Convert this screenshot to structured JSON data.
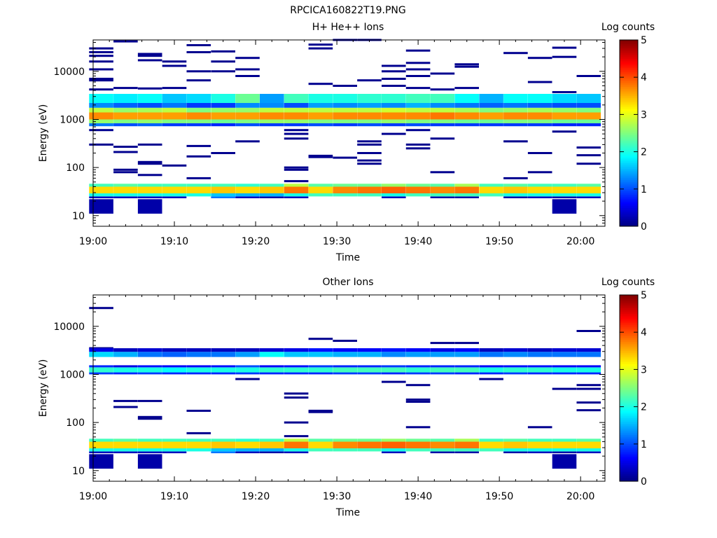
{
  "figure_title": "RPCICA160822T19.PNG",
  "chart_data": [
    {
      "type": "heatmap",
      "title": "H+ He++ Ions",
      "xlabel": "Time",
      "ylabel": "Energy (eV)",
      "yscale": "log",
      "ylim": [
        6,
        45000
      ],
      "xlim": [
        "19:00",
        "20:03"
      ],
      "x_ticks": [
        "19:00",
        "19:10",
        "19:20",
        "19:30",
        "19:40",
        "19:50",
        "20:00"
      ],
      "y_ticks": [
        "10",
        "100",
        "1000",
        "10000"
      ],
      "colorbar": {
        "label": "Log counts",
        "range": [
          0,
          5
        ],
        "ticks": [
          "0",
          "1",
          "2",
          "3",
          "4",
          "5"
        ],
        "colormap": "jet"
      },
      "time_bins": [
        "19:01",
        "19:04",
        "19:07",
        "19:10",
        "19:13",
        "19:16",
        "19:19",
        "19:22",
        "19:25",
        "19:28",
        "19:31",
        "19:34",
        "19:37",
        "19:40",
        "19:43",
        "19:46",
        "19:49",
        "19:52",
        "19:55",
        "19:58",
        "20:01"
      ],
      "bands": [
        {
          "emin": 29,
          "emax": 40,
          "levels": [
            3.3,
            3.3,
            3.3,
            3.3,
            3.3,
            3.4,
            3.3,
            3.4,
            3.8,
            3.3,
            3.7,
            3.8,
            3.9,
            3.8,
            3.7,
            3.8,
            3.3,
            3.4,
            3.3,
            3.3,
            3.3
          ]
        },
        {
          "emin": 40,
          "emax": 46,
          "levels": [
            2.2,
            2.3,
            2.2,
            2.2,
            2.2,
            2.2,
            2.1,
            2.2,
            2.8,
            2.3,
            2.4,
            2.4,
            2.6,
            2.4,
            2.3,
            2.7,
            2.2,
            2.3,
            2.2,
            2.2,
            2.3
          ]
        },
        {
          "emin": 25,
          "emax": 29,
          "levels": [
            2.0,
            2.0,
            2.0,
            2.0,
            2.0,
            1.6,
            1.5,
            1.5,
            2.0,
            2.2,
            2.2,
            2.2,
            2.0,
            2.2,
            2.2,
            2.2,
            2.2,
            2.0,
            2.0,
            2.0,
            2.0
          ]
        },
        {
          "emin": 23,
          "emax": 25,
          "levels": [
            0.3,
            0.3,
            0.3,
            0.3,
            0,
            1.2,
            0.3,
            0.2,
            0.3,
            0,
            0,
            0,
            0.3,
            0,
            0.2,
            0.2,
            0,
            0.2,
            0.3,
            0.2,
            0.3
          ]
        },
        {
          "emin": 11,
          "emax": 22,
          "levels": [
            0.2,
            0,
            0.2,
            0,
            0,
            0,
            0,
            0,
            0,
            0,
            0,
            0,
            0,
            0,
            0,
            0,
            0,
            0,
            0,
            0.2,
            0
          ]
        },
        {
          "emin": 1000,
          "emax": 1400,
          "levels": [
            3.7,
            3.6,
            3.6,
            3.6,
            3.7,
            3.6,
            3.6,
            3.7,
            3.7,
            3.6,
            3.7,
            3.7,
            3.7,
            3.7,
            3.8,
            3.7,
            3.6,
            3.7,
            3.7,
            3.6,
            3.6
          ]
        },
        {
          "emin": 1400,
          "emax": 1750,
          "levels": [
            2.8,
            2.6,
            2.7,
            2.8,
            2.5,
            2.6,
            2.6,
            2.8,
            2.8,
            2.8,
            2.8,
            2.8,
            2.9,
            2.8,
            2.8,
            2.7,
            2.5,
            2.6,
            2.7,
            2.6,
            2.5
          ]
        },
        {
          "emin": 830,
          "emax": 1000,
          "levels": [
            2.6,
            2.5,
            2.6,
            2.5,
            2.5,
            2.4,
            2.5,
            2.6,
            2.6,
            2.5,
            2.5,
            2.5,
            2.6,
            2.5,
            2.5,
            2.4,
            2.4,
            2.5,
            2.5,
            2.4,
            2.4
          ]
        },
        {
          "emin": 1750,
          "emax": 2200,
          "levels": [
            1.3,
            1.1,
            1.0,
            1.2,
            0.9,
            0.9,
            1.3,
            1.3,
            1.0,
            1.4,
            1.3,
            1.4,
            1.3,
            1.5,
            1.3,
            1.2,
            1.1,
            1.2,
            1.1,
            1.0,
            1.0
          ]
        },
        {
          "emin": 2200,
          "emax": 3400,
          "levels": [
            1.9,
            1.8,
            1.9,
            1.6,
            1.7,
            2.0,
            2.4,
            1.4,
            2.2,
            2.0,
            2.0,
            2.1,
            2.1,
            2.2,
            2.2,
            1.9,
            1.5,
            1.9,
            1.9,
            1.7,
            1.6
          ]
        },
        {
          "emin": 720,
          "emax": 830,
          "levels": [
            1.2,
            1.0,
            1.1,
            0.9,
            0.9,
            0.8,
            1.0,
            0.9,
            0.9,
            1.0,
            0.9,
            1.0,
            0.9,
            1.0,
            0.9,
            0.9,
            0.9,
            0.9,
            0.9,
            0.8,
            0.8
          ]
        }
      ],
      "sparse_lines": [
        [
          "19:01",
          30000
        ],
        [
          "19:01",
          25000
        ],
        [
          "19:01",
          21000
        ],
        [
          "19:01",
          16000
        ],
        [
          "19:01",
          11000
        ],
        [
          "19:01",
          7000
        ],
        [
          "19:01",
          6500
        ],
        [
          "19:01",
          4200
        ],
        [
          "19:01",
          600
        ],
        [
          "19:01",
          300
        ],
        [
          "19:04",
          42000
        ],
        [
          "19:04",
          4500
        ],
        [
          "19:04",
          270
        ],
        [
          "19:04",
          210
        ],
        [
          "19:04",
          90
        ],
        [
          "19:04",
          80
        ],
        [
          "19:07",
          23000
        ],
        [
          "19:07",
          21000
        ],
        [
          "19:07",
          17000
        ],
        [
          "19:07",
          4400
        ],
        [
          "19:07",
          300
        ],
        [
          "19:07",
          130
        ],
        [
          "19:07",
          120
        ],
        [
          "19:07",
          70
        ],
        [
          "19:10",
          16000
        ],
        [
          "19:10",
          13000
        ],
        [
          "19:10",
          4500
        ],
        [
          "19:10",
          110
        ],
        [
          "19:13",
          35000
        ],
        [
          "19:13",
          25000
        ],
        [
          "19:13",
          10000
        ],
        [
          "19:13",
          6500
        ],
        [
          "19:13",
          3200
        ],
        [
          "19:13",
          280
        ],
        [
          "19:13",
          170
        ],
        [
          "19:13",
          60
        ],
        [
          "19:16",
          26000
        ],
        [
          "19:16",
          16000
        ],
        [
          "19:16",
          10000
        ],
        [
          "19:16",
          200
        ],
        [
          "19:19",
          19000
        ],
        [
          "19:19",
          11000
        ],
        [
          "19:19",
          8000
        ],
        [
          "19:19",
          350
        ],
        [
          "19:25",
          600
        ],
        [
          "19:25",
          500
        ],
        [
          "19:25",
          400
        ],
        [
          "19:25",
          100
        ],
        [
          "19:25",
          90
        ],
        [
          "19:25",
          52
        ],
        [
          "19:28",
          36000
        ],
        [
          "19:28",
          30000
        ],
        [
          "19:28",
          5500
        ],
        [
          "19:28",
          175
        ],
        [
          "19:28",
          165
        ],
        [
          "19:31",
          45000
        ],
        [
          "19:31",
          5000
        ],
        [
          "19:31",
          160
        ],
        [
          "19:34",
          45000
        ],
        [
          "19:34",
          6500
        ],
        [
          "19:34",
          350
        ],
        [
          "19:34",
          300
        ],
        [
          "19:34",
          200
        ],
        [
          "19:34",
          140
        ],
        [
          "19:34",
          120
        ],
        [
          "19:37",
          13000
        ],
        [
          "19:37",
          10000
        ],
        [
          "19:37",
          7000
        ],
        [
          "19:37",
          5000
        ],
        [
          "19:37",
          500
        ],
        [
          "19:40",
          27000
        ],
        [
          "19:40",
          15000
        ],
        [
          "19:40",
          11000
        ],
        [
          "19:40",
          8000
        ],
        [
          "19:40",
          4500
        ],
        [
          "19:40",
          600
        ],
        [
          "19:40",
          300
        ],
        [
          "19:40",
          250
        ],
        [
          "19:43",
          9000
        ],
        [
          "19:43",
          4200
        ],
        [
          "19:43",
          400
        ],
        [
          "19:43",
          80
        ],
        [
          "19:46",
          14000
        ],
        [
          "19:46",
          12500
        ],
        [
          "19:46",
          4500
        ],
        [
          "19:52",
          24000
        ],
        [
          "19:52",
          350
        ],
        [
          "19:52",
          60
        ],
        [
          "19:55",
          19000
        ],
        [
          "19:55",
          6000
        ],
        [
          "19:55",
          200
        ],
        [
          "19:55",
          80
        ],
        [
          "19:58",
          31000
        ],
        [
          "19:58",
          20000
        ],
        [
          "19:58",
          3700
        ],
        [
          "19:58",
          560
        ],
        [
          "20:01",
          8000
        ],
        [
          "20:01",
          260
        ],
        [
          "20:01",
          180
        ],
        [
          "20:01",
          120
        ]
      ]
    },
    {
      "type": "heatmap",
      "title": "Other Ions",
      "xlabel": "Time",
      "ylabel": "Energy (eV)",
      "yscale": "log",
      "ylim": [
        6,
        45000
      ],
      "xlim": [
        "19:00",
        "20:03"
      ],
      "x_ticks": [
        "19:00",
        "19:10",
        "19:20",
        "19:30",
        "19:40",
        "19:50",
        "20:00"
      ],
      "y_ticks": [
        "10",
        "100",
        "1000",
        "10000"
      ],
      "colorbar": {
        "label": "Log counts",
        "range": [
          0,
          5
        ],
        "ticks": [
          "0",
          "1",
          "2",
          "3",
          "4",
          "5"
        ],
        "colormap": "jet"
      },
      "time_bins": [
        "19:01",
        "19:04",
        "19:07",
        "19:10",
        "19:13",
        "19:16",
        "19:19",
        "19:22",
        "19:25",
        "19:28",
        "19:31",
        "19:34",
        "19:37",
        "19:40",
        "19:43",
        "19:46",
        "19:49",
        "19:52",
        "19:55",
        "19:58",
        "20:01"
      ],
      "bands": [
        {
          "emin": 29,
          "emax": 40,
          "levels": [
            3.3,
            3.3,
            3.3,
            3.3,
            3.3,
            3.4,
            3.3,
            3.4,
            3.8,
            3.3,
            3.7,
            3.8,
            3.9,
            3.8,
            3.7,
            3.8,
            3.3,
            3.4,
            3.3,
            3.3,
            3.3
          ]
        },
        {
          "emin": 40,
          "emax": 46,
          "levels": [
            2.2,
            2.3,
            2.2,
            2.2,
            2.2,
            2.2,
            2.1,
            2.2,
            2.8,
            2.3,
            2.4,
            2.4,
            2.6,
            2.4,
            2.3,
            2.7,
            2.2,
            2.3,
            2.2,
            2.2,
            2.3
          ]
        },
        {
          "emin": 25,
          "emax": 29,
          "levels": [
            2.0,
            2.0,
            2.0,
            2.0,
            2.0,
            1.6,
            1.5,
            1.5,
            2.0,
            2.2,
            2.2,
            2.2,
            2.0,
            2.2,
            2.2,
            2.2,
            2.2,
            2.0,
            2.0,
            2.0,
            2.0
          ]
        },
        {
          "emin": 23,
          "emax": 25,
          "levels": [
            0.3,
            0.3,
            0.3,
            0.3,
            0,
            1.2,
            0.3,
            0.2,
            0.3,
            0,
            0,
            0,
            0.3,
            0,
            0.2,
            0.2,
            0,
            0.2,
            0.3,
            0.2,
            0.3
          ]
        },
        {
          "emin": 11,
          "emax": 22,
          "levels": [
            0.2,
            0,
            0.2,
            0,
            0,
            0,
            0,
            0,
            0,
            0,
            0,
            0,
            0,
            0,
            0,
            0,
            0,
            0,
            0,
            0.2,
            0
          ]
        },
        {
          "emin": 1100,
          "emax": 1400,
          "levels": [
            2.1,
            2.0,
            2.0,
            1.9,
            2.0,
            2.0,
            2.0,
            2.1,
            2.1,
            2.1,
            2.2,
            2.2,
            2.2,
            2.1,
            2.2,
            2.2,
            2.0,
            2.1,
            2.1,
            2.0,
            2.0
          ]
        },
        {
          "emin": 1400,
          "emax": 1550,
          "levels": [
            0.8,
            0.5,
            0.7,
            0.6,
            0.6,
            0.7,
            1.0,
            0.6,
            0.7,
            0.9,
            0.8,
            0.8,
            0.9,
            0.8,
            0.8,
            0.8,
            0.6,
            0.7,
            0.7,
            0.6,
            0.6
          ]
        },
        {
          "emin": 1000,
          "emax": 1100,
          "levels": [
            0.9,
            0.8,
            0.9,
            0.8,
            0.8,
            0.8,
            0.9,
            0.8,
            0.8,
            0.8,
            0.9,
            0.9,
            0.8,
            0.9,
            0.9,
            0.8,
            0.8,
            0.9,
            0.8,
            0.8,
            0.8
          ]
        },
        {
          "emin": 2300,
          "emax": 2950,
          "levels": [
            1.7,
            1.5,
            1.2,
            1.1,
            1.2,
            1.2,
            1.4,
            1.9,
            1.6,
            1.6,
            1.5,
            1.5,
            1.3,
            1.4,
            1.4,
            1.4,
            1.2,
            1.3,
            1.2,
            1.2,
            1.2
          ]
        },
        {
          "emin": 2950,
          "emax": 3500,
          "levels": [
            0.5,
            0.3,
            0.4,
            0.3,
            0.3,
            0.3,
            0.3,
            0.4,
            0.5,
            0.7,
            0.6,
            0.6,
            0.7,
            0.6,
            0.5,
            0.6,
            0.3,
            0.4,
            0.3,
            0.4,
            0.4
          ]
        }
      ],
      "sparse_lines": [
        [
          "19:01",
          24000
        ],
        [
          "19:01",
          3500
        ],
        [
          "19:04",
          280
        ],
        [
          "19:04",
          210
        ],
        [
          "19:07",
          280
        ],
        [
          "19:07",
          130
        ],
        [
          "19:07",
          120
        ],
        [
          "19:13",
          175
        ],
        [
          "19:13",
          60
        ],
        [
          "19:19",
          800
        ],
        [
          "19:25",
          400
        ],
        [
          "19:25",
          330
        ],
        [
          "19:25",
          100
        ],
        [
          "19:25",
          52
        ],
        [
          "19:28",
          5500
        ],
        [
          "19:28",
          175
        ],
        [
          "19:28",
          165
        ],
        [
          "19:31",
          5000
        ],
        [
          "19:37",
          700
        ],
        [
          "19:40",
          600
        ],
        [
          "19:40",
          300
        ],
        [
          "19:40",
          270
        ],
        [
          "19:40",
          80
        ],
        [
          "19:43",
          4500
        ],
        [
          "19:46",
          4500
        ],
        [
          "19:49",
          800
        ],
        [
          "19:55",
          80
        ],
        [
          "19:58",
          500
        ],
        [
          "20:01",
          8000
        ],
        [
          "20:01",
          600
        ],
        [
          "20:01",
          500
        ],
        [
          "20:01",
          260
        ],
        [
          "20:01",
          180
        ]
      ]
    }
  ]
}
